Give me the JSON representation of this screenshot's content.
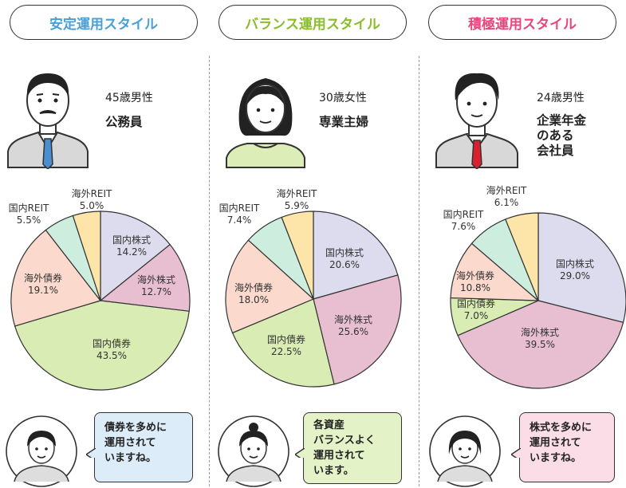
{
  "colors": {
    "domestic_stock": "#dcdcee",
    "foreign_stock": "#e8bfd0",
    "domestic_bond": "#d9ecb4",
    "foreign_bond": "#fbd9cc",
    "domestic_reit": "#cdeede",
    "foreign_reit": "#fde4a8",
    "stable_title": "#4a9fd6",
    "balance_title": "#8bbd2a",
    "aggressive_title": "#e8467c",
    "stable_bubble": "#dcecf8",
    "balance_bubble": "#e4f2c8",
    "aggressive_bubble": "#fbdde8"
  },
  "columns": [
    {
      "title": "安定運用スタイル",
      "age": "45歳男性",
      "occupation": [
        "公務員"
      ],
      "bubble": [
        "債券を多めに",
        "運用されて",
        "いますね。"
      ],
      "avatar_icon": "man-tie-mustache-icon"
    },
    {
      "title": "バランス運用スタイル",
      "age": "30歳女性",
      "occupation": [
        "専業主婦"
      ],
      "bubble": [
        "各資産",
        "バランスよく",
        "運用されて",
        "います。"
      ],
      "avatar_icon": "woman-icon"
    },
    {
      "title": "積極運用スタイル",
      "age": "24歳男性",
      "occupation": [
        "企業年金",
        "のある",
        "会社員"
      ],
      "bubble": [
        "株式を多めに",
        "運用されて",
        "いますね。"
      ],
      "avatar_icon": "young-man-red-tie-icon"
    }
  ],
  "chart_data": [
    {
      "type": "pie",
      "slices": [
        {
          "name": "国内株式",
          "value": 14.2,
          "label": "14.2%"
        },
        {
          "name": "海外株式",
          "value": 12.7,
          "label": "12.7%"
        },
        {
          "name": "国内債券",
          "value": 43.5,
          "label": "43.5%"
        },
        {
          "name": "海外債券",
          "value": 19.1,
          "label": "19.1%"
        },
        {
          "name": "国内REIT",
          "value": 5.5,
          "label": "5.5%"
        },
        {
          "name": "海外REIT",
          "value": 5.0,
          "label": "5.0%"
        }
      ]
    },
    {
      "type": "pie",
      "slices": [
        {
          "name": "国内株式",
          "value": 20.6,
          "label": "20.6%"
        },
        {
          "name": "海外株式",
          "value": 25.6,
          "label": "25.6%"
        },
        {
          "name": "国内債券",
          "value": 22.5,
          "label": "22.5%"
        },
        {
          "name": "海外債券",
          "value": 18.0,
          "label": "18.0%"
        },
        {
          "name": "国内REIT",
          "value": 7.4,
          "label": "7.4%"
        },
        {
          "name": "海外REIT",
          "value": 5.9,
          "label": "5.9%"
        }
      ]
    },
    {
      "type": "pie",
      "slices": [
        {
          "name": "国内株式",
          "value": 29.0,
          "label": "29.0%"
        },
        {
          "name": "海外株式",
          "value": 39.5,
          "label": "39.5%"
        },
        {
          "name": "国内債券",
          "value": 7.0,
          "label": "7.0%"
        },
        {
          "name": "海外債券",
          "value": 10.8,
          "label": "10.8%"
        },
        {
          "name": "国内REIT",
          "value": 7.6,
          "label": "7.6%"
        },
        {
          "name": "海外REIT",
          "value": 6.1,
          "label": "6.1%"
        }
      ]
    }
  ]
}
